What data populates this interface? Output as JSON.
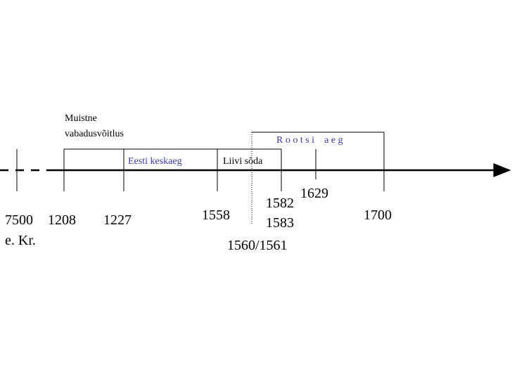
{
  "labels": {
    "ancient_1": "Muistne",
    "ancient_2": "vabadusvõitlus",
    "middle_ages": "Eesti keskaeg",
    "livonian_war": "Liivi sõda",
    "swedish_era": "R o o t s i    a e g"
  },
  "years": {
    "y7500": "7500",
    "bc": "e. Kr.",
    "y1208": "1208",
    "y1227": "1227",
    "y1558": "1558",
    "y1582": "1582",
    "y1583": "1583",
    "y1629": "1629",
    "y1700": "1700",
    "y1560": "1560/1561"
  }
}
